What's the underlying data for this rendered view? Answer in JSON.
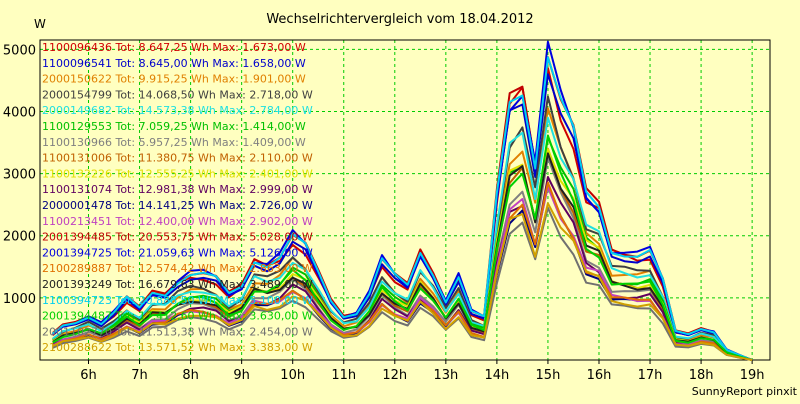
{
  "chart_data": {
    "type": "line",
    "title": "Wechselrichtervergleich vom 18.04.2012",
    "ylabel": "W",
    "xlabel": "",
    "footer": "SunnyReport pinxit",
    "x_ticks": [
      "6h",
      "7h",
      "8h",
      "9h",
      "10h",
      "11h",
      "12h",
      "13h",
      "14h",
      "15h",
      "16h",
      "17h",
      "18h",
      "19h"
    ],
    "y_ticks": [
      "1000",
      "2000",
      "3000",
      "4000",
      "5000"
    ],
    "ylim": [
      0,
      5150
    ],
    "xlim": [
      5.05,
      19.35
    ],
    "grid": true,
    "legend_position": "top-left inside",
    "x": [
      5.3,
      5.5,
      5.75,
      6.0,
      6.25,
      6.5,
      6.75,
      7.0,
      7.25,
      7.5,
      7.75,
      8.0,
      8.25,
      8.5,
      8.75,
      9.0,
      9.25,
      9.5,
      9.75,
      10.0,
      10.25,
      10.5,
      10.75,
      11.0,
      11.25,
      11.5,
      11.75,
      12.0,
      12.25,
      12.5,
      12.75,
      13.0,
      13.25,
      13.5,
      13.75,
      14.0,
      14.25,
      14.5,
      14.75,
      15.0,
      15.25,
      15.5,
      15.75,
      16.0,
      16.25,
      16.5,
      16.75,
      17.0,
      17.25,
      17.5,
      17.75,
      18.0,
      18.25,
      18.5,
      18.75,
      19.0
    ],
    "series": [
      {
        "legend": "1100096436 Tot: 8.647,25 Wh Max: 1.673,00 W",
        "color": "#d00000",
        "scale": 0.95
      },
      {
        "legend": "1100096541 Tot: 8.645,00 Wh Max: 1.658,00 W",
        "color": "#0000cc",
        "scale": 0.94
      },
      {
        "legend": "2000150622 Tot: 9.915,25 Wh Max: 1.901,00 W",
        "color": "#e08000",
        "scale": 0.78
      },
      {
        "legend": "2000154799 Tot: 14.068,50 Wh Max: 2.718,00 W",
        "color": "#404040",
        "scale": 0.82
      },
      {
        "legend": "2000149682 Tot: 14.573,38 Wh Max: 2.784,00 W",
        "color": "#20e0e0",
        "scale": 0.8
      },
      {
        "legend": "1100129553 Tot: 7.059,25 Wh Max: 1.414,00 W",
        "color": "#00c000",
        "scale": 0.72
      },
      {
        "legend": "1100130966 Tot: 5.957,25 Wh Max: 1.409,00 W",
        "color": "#808080",
        "scale": 0.62
      },
      {
        "legend": "1100131006 Tot: 11.380,75 Wh Max: 2.110,00 W",
        "color": "#c06000",
        "scale": 0.67
      },
      {
        "legend": "1100132226 Tot: 12.555,25 Wh Max: 2.401,00 W",
        "color": "#e0e000",
        "scale": 0.7
      },
      {
        "legend": "1100131074 Tot: 12.981,38 Wh Max: 2.999,00 W",
        "color": "#600060",
        "scale": 0.58
      },
      {
        "legend": "2000001478 Tot: 14.141,25 Wh Max: 2.726,00 W",
        "color": "#000080",
        "scale": 0.54
      },
      {
        "legend": "1100213451 Tot: 12.400,00 Wh Max: 2.902,00 W",
        "color": "#c040c0",
        "scale": 0.56
      },
      {
        "legend": "2001394485 Tot: 20.553,75 Wh Max: 5.028,00 W",
        "color": "#c00000",
        "scale": 1.0
      },
      {
        "legend": "2001394725 Tot: 21.059,63 Wh Max: 5.126,00 W",
        "color": "#0000e0",
        "scale": 0.99
      },
      {
        "legend": "2100289887 Tot: 12.574,42 Wh Max: 2.863,00 W",
        "color": "#e07000",
        "scale": 0.55
      },
      {
        "legend": "2001393249 Tot: 16.679,63 Wh Max: 3.489,00 W",
        "color": "#202020",
        "scale": 0.68
      },
      {
        "legend": "1100394723 Tot: 20.888,50 Wh Max: 5.100,00 W",
        "color": "#00d0f0",
        "scale": 0.985
      },
      {
        "legend": "2001394487 Tot: 17.412,60 Wh Max: 3.630,00 W",
        "color": "#00d000",
        "scale": 0.69
      },
      {
        "legend": "2001102770 Tot: 11.513,38 Wh Max: 2.454,00 W",
        "color": "#707070",
        "scale": 0.48
      },
      {
        "legend": "2100288622 Tot: 13.571,52 Wh Max: 3.383,00 W",
        "color": "#d0a000",
        "scale": 0.52
      }
    ],
    "base_profile": [
      420,
      560,
      620,
      720,
      600,
      770,
      1000,
      830,
      1090,
      1080,
      1300,
      1420,
      1410,
      1320,
      1060,
      1190,
      1640,
      1580,
      1710,
      2030,
      1840,
      1400,
      960,
      720,
      780,
      1100,
      1640,
      1360,
      1190,
      1740,
      1420,
      980,
      1380,
      790,
      690,
      2650,
      4200,
      4450,
      3260,
      5050,
      4220,
      3680,
      2660,
      2490,
      1800,
      1760,
      1720,
      1770,
      1280,
      460,
      420,
      520,
      470,
      170,
      80,
      0
    ]
  }
}
